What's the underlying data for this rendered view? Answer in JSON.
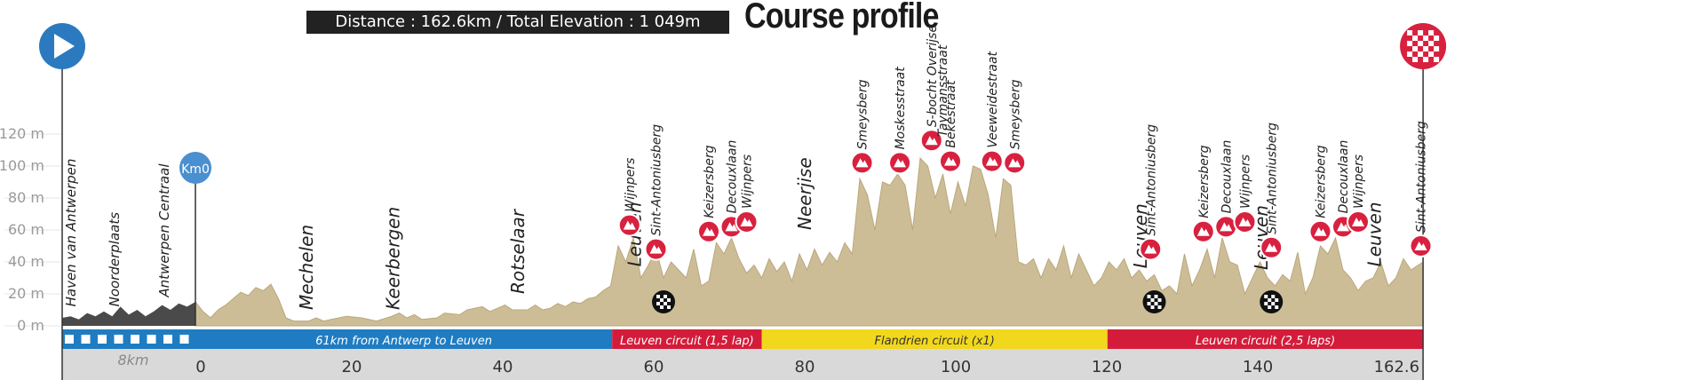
{
  "header": {
    "summary": "Distance : 162.6km / Total Elevation : 1 049m",
    "title": "Course profile"
  },
  "colors": {
    "profile_fill": "#cdbd97",
    "profile_edge": "#b9a77c",
    "neutral_fill": "#4a4a4a",
    "transfer": "#1f7cc2",
    "leuven_circuit": "#d41c3a",
    "flandrien_circuit": "#f2d81c",
    "axis_band": "#d9d9d9",
    "climb_badge": "#d8213f",
    "start_badge": "#2b7ac0",
    "km0_badge": "#4a8fcf"
  },
  "chart_data": {
    "type": "area",
    "xlabel": "",
    "ylabel": "",
    "xlim": [
      -8,
      162.6
    ],
    "ylim": [
      0,
      120
    ],
    "y_ticks": [
      {
        "v": 0,
        "label": "0 m"
      },
      {
        "v": 20,
        "label": "20 m"
      },
      {
        "v": 40,
        "label": "40 m"
      },
      {
        "v": 60,
        "label": "60 m"
      },
      {
        "v": 80,
        "label": "80 m"
      },
      {
        "v": 100,
        "label": "100 m"
      },
      {
        "v": 120,
        "label": "120 m"
      }
    ],
    "x_ticks": [
      {
        "v": 0,
        "label": "0"
      },
      {
        "v": 20,
        "label": "20"
      },
      {
        "v": 40,
        "label": "40"
      },
      {
        "v": 60,
        "label": "60"
      },
      {
        "v": 80,
        "label": "80"
      },
      {
        "v": 100,
        "label": "100"
      },
      {
        "v": 120,
        "label": "120"
      },
      {
        "v": 140,
        "label": "140"
      },
      {
        "v": 162.6,
        "label": "162.6"
      }
    ],
    "neutral_label": "8km",
    "neutral_profile": [
      [
        -8,
        5
      ],
      [
        -7.5,
        6
      ],
      [
        -7,
        4
      ],
      [
        -6.5,
        8
      ],
      [
        -6,
        6
      ],
      [
        -5.5,
        9
      ],
      [
        -5,
        6
      ],
      [
        -4.5,
        12
      ],
      [
        -4,
        7
      ],
      [
        -3.5,
        10
      ],
      [
        -3,
        6
      ],
      [
        -2.5,
        9
      ],
      [
        -2,
        13
      ],
      [
        -1.5,
        10
      ],
      [
        -1,
        14
      ],
      [
        -0.5,
        12
      ],
      [
        0,
        15
      ]
    ],
    "profile": [
      [
        0,
        15
      ],
      [
        1,
        9
      ],
      [
        2,
        5
      ],
      [
        3,
        10
      ],
      [
        4,
        13
      ],
      [
        5,
        17
      ],
      [
        6,
        21
      ],
      [
        7,
        19
      ],
      [
        8,
        24
      ],
      [
        9,
        22
      ],
      [
        10,
        26
      ],
      [
        11,
        17
      ],
      [
        12,
        5
      ],
      [
        13,
        3
      ],
      [
        15,
        3
      ],
      [
        16,
        5
      ],
      [
        17,
        3
      ],
      [
        18,
        4
      ],
      [
        20,
        6
      ],
      [
        22,
        5
      ],
      [
        24,
        3
      ],
      [
        26,
        6
      ],
      [
        27,
        8
      ],
      [
        28,
        5
      ],
      [
        29,
        7
      ],
      [
        30,
        4
      ],
      [
        32,
        5
      ],
      [
        33,
        8
      ],
      [
        35,
        7
      ],
      [
        36,
        10
      ],
      [
        38,
        12
      ],
      [
        39,
        9
      ],
      [
        40,
        11
      ],
      [
        41,
        13
      ],
      [
        42,
        10
      ],
      [
        44,
        10
      ],
      [
        45,
        13
      ],
      [
        46,
        10
      ],
      [
        47,
        11
      ],
      [
        48,
        14
      ],
      [
        49,
        12
      ],
      [
        50,
        15
      ],
      [
        51,
        14
      ],
      [
        52,
        17
      ],
      [
        53,
        18
      ],
      [
        54,
        22
      ],
      [
        55,
        25
      ],
      [
        56,
        50
      ],
      [
        57,
        40
      ],
      [
        58,
        55
      ],
      [
        59,
        30
      ],
      [
        60,
        38
      ],
      [
        61,
        48
      ],
      [
        62,
        30
      ],
      [
        63,
        40
      ],
      [
        64,
        35
      ],
      [
        65,
        30
      ],
      [
        66,
        48
      ],
      [
        67,
        25
      ],
      [
        68,
        28
      ],
      [
        69,
        52
      ],
      [
        70,
        45
      ],
      [
        71,
        55
      ],
      [
        72,
        42
      ],
      [
        73,
        33
      ],
      [
        74,
        38
      ],
      [
        75,
        30
      ],
      [
        76,
        42
      ],
      [
        77,
        34
      ],
      [
        78,
        40
      ],
      [
        79,
        28
      ],
      [
        80,
        45
      ],
      [
        81,
        35
      ],
      [
        82,
        48
      ],
      [
        83,
        38
      ],
      [
        84,
        46
      ],
      [
        85,
        40
      ],
      [
        86,
        52
      ],
      [
        87,
        45
      ],
      [
        88,
        92
      ],
      [
        89,
        82
      ],
      [
        90,
        60
      ],
      [
        91,
        90
      ],
      [
        92,
        88
      ],
      [
        93,
        95
      ],
      [
        94,
        88
      ],
      [
        95,
        60
      ],
      [
        96,
        105
      ],
      [
        97,
        100
      ],
      [
        98,
        80
      ],
      [
        99,
        95
      ],
      [
        100,
        70
      ],
      [
        101,
        90
      ],
      [
        102,
        75
      ],
      [
        103,
        100
      ],
      [
        104,
        98
      ],
      [
        105,
        82
      ],
      [
        106,
        55
      ],
      [
        107,
        92
      ],
      [
        108,
        88
      ],
      [
        109,
        40
      ],
      [
        110,
        38
      ],
      [
        111,
        42
      ],
      [
        112,
        30
      ],
      [
        113,
        42
      ],
      [
        114,
        35
      ],
      [
        115,
        50
      ],
      [
        116,
        30
      ],
      [
        117,
        45
      ],
      [
        118,
        35
      ],
      [
        119,
        25
      ],
      [
        120,
        30
      ],
      [
        121,
        40
      ],
      [
        122,
        35
      ],
      [
        123,
        42
      ],
      [
        124,
        30
      ],
      [
        125,
        35
      ],
      [
        126,
        28
      ],
      [
        127,
        32
      ],
      [
        128,
        22
      ],
      [
        129,
        25
      ],
      [
        130,
        20
      ],
      [
        131,
        45
      ],
      [
        132,
        25
      ],
      [
        133,
        35
      ],
      [
        134,
        48
      ],
      [
        135,
        30
      ],
      [
        136,
        55
      ],
      [
        137,
        40
      ],
      [
        138,
        38
      ],
      [
        139,
        20
      ],
      [
        140,
        30
      ],
      [
        141,
        40
      ],
      [
        142,
        30
      ],
      [
        143,
        25
      ],
      [
        144,
        32
      ],
      [
        145,
        28
      ],
      [
        146,
        46
      ],
      [
        147,
        20
      ],
      [
        148,
        30
      ],
      [
        149,
        50
      ],
      [
        150,
        45
      ],
      [
        151,
        55
      ],
      [
        152,
        35
      ],
      [
        153,
        30
      ],
      [
        154,
        22
      ],
      [
        155,
        28
      ],
      [
        156,
        30
      ],
      [
        157,
        40
      ],
      [
        158,
        25
      ],
      [
        159,
        30
      ],
      [
        160,
        42
      ],
      [
        161,
        35
      ],
      [
        162.6,
        40
      ]
    ],
    "places": [
      {
        "km": -7.2,
        "label": "Haven van Antwerpen",
        "alt": 12
      },
      {
        "km": -4.6,
        "label": "Noorderplaats",
        "alt": 12
      },
      {
        "km": -1.6,
        "label": "Antwerpen Centraal",
        "alt": 18
      },
      {
        "km": 15.5,
        "label": "Mechelen",
        "alt": 10
      },
      {
        "km": 27,
        "label": "Keerbergen",
        "alt": 10
      },
      {
        "km": 43.5,
        "label": "Rotselaar",
        "alt": 20
      },
      {
        "km": 59,
        "label": "Leuven",
        "alt": 37
      },
      {
        "km": 81.5,
        "label": "Neerjise",
        "alt": 60
      },
      {
        "km": 126,
        "label": "Leuven",
        "alt": 36
      },
      {
        "km": 142,
        "label": "Leuven",
        "alt": 35
      },
      {
        "km": 157,
        "label": "Leuven",
        "alt": 37
      }
    ],
    "climbs": [
      {
        "km": 57.5,
        "alt": 63,
        "label": "Wijnpers"
      },
      {
        "km": 61,
        "alt": 48,
        "label": "Sint-Antoniusberg"
      },
      {
        "km": 68,
        "alt": 59,
        "label": "Keizersberg"
      },
      {
        "km": 71,
        "alt": 62,
        "label": "Decouxlaan"
      },
      {
        "km": 73,
        "alt": 65,
        "label": "Wijnpers"
      },
      {
        "km": 88.3,
        "alt": 102,
        "label": "Smeysberg"
      },
      {
        "km": 93.3,
        "alt": 102,
        "label": "Moskesstraat"
      },
      {
        "km": 97.5,
        "alt": 116,
        "label": "S-bocht Overijse"
      },
      {
        "km": 99.5,
        "label": "Taymansstraat"
      },
      {
        "km": 100,
        "alt": 103,
        "label": "Bekestraat"
      },
      {
        "km": 105.5,
        "alt": 103,
        "label": "Veeweidestraat"
      },
      {
        "km": 108.5,
        "alt": 102,
        "label": "Smeysberg"
      },
      {
        "km": 126.5,
        "alt": 48,
        "label": "Sint-Antoniusberg"
      },
      {
        "km": 133.5,
        "alt": 59,
        "label": "Keizersberg"
      },
      {
        "km": 136.5,
        "alt": 62,
        "label": "Decouxlaan"
      },
      {
        "km": 139,
        "alt": 65,
        "label": "Wijnpers"
      },
      {
        "km": 142.5,
        "alt": 49,
        "label": "Sint-Antoniusberg"
      },
      {
        "km": 149,
        "alt": 59,
        "label": "Keizersberg"
      },
      {
        "km": 152,
        "alt": 62,
        "label": "Decouxlaan"
      },
      {
        "km": 154,
        "alt": 65,
        "label": "Wijnpers"
      },
      {
        "km": 162.3,
        "alt": 50,
        "label": "Sint-Antoniusberg"
      }
    ],
    "finish_line_flags_km": [
      62,
      127,
      142.5
    ],
    "segments": [
      {
        "from": -8,
        "to": 0,
        "label": "",
        "kind": "neutral"
      },
      {
        "from": 0,
        "to": 55.2,
        "label": "61km from Antwerp to Leuven",
        "kind": "transfer"
      },
      {
        "from": 55.2,
        "to": 75,
        "label": "Leuven circuit (1,5 lap)",
        "kind": "leuven"
      },
      {
        "from": 75,
        "to": 120.8,
        "label": "Flandrien circuit (x1)",
        "kind": "flandrien"
      },
      {
        "from": 120.8,
        "to": 162.6,
        "label": "Leuven circuit (2,5 laps)",
        "kind": "leuven"
      }
    ],
    "markers": {
      "km0": "Km0"
    }
  }
}
